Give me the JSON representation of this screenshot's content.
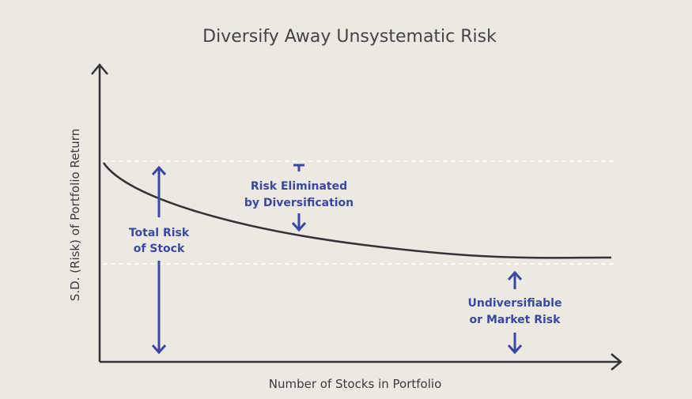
{
  "title": "Diversify Away Unsystematic Risk",
  "x_axis_label": "Number of Stocks in Portfolio",
  "y_axis_label": "S.D. (Risk) of Portfolio Return",
  "annotations": {
    "total_risk": [
      "Total Risk",
      "of Stock"
    ],
    "risk_eliminated": [
      "Risk Eliminated",
      "by Diversification"
    ],
    "market_risk": [
      "Undiversifiable",
      "or Market Risk"
    ]
  }
}
